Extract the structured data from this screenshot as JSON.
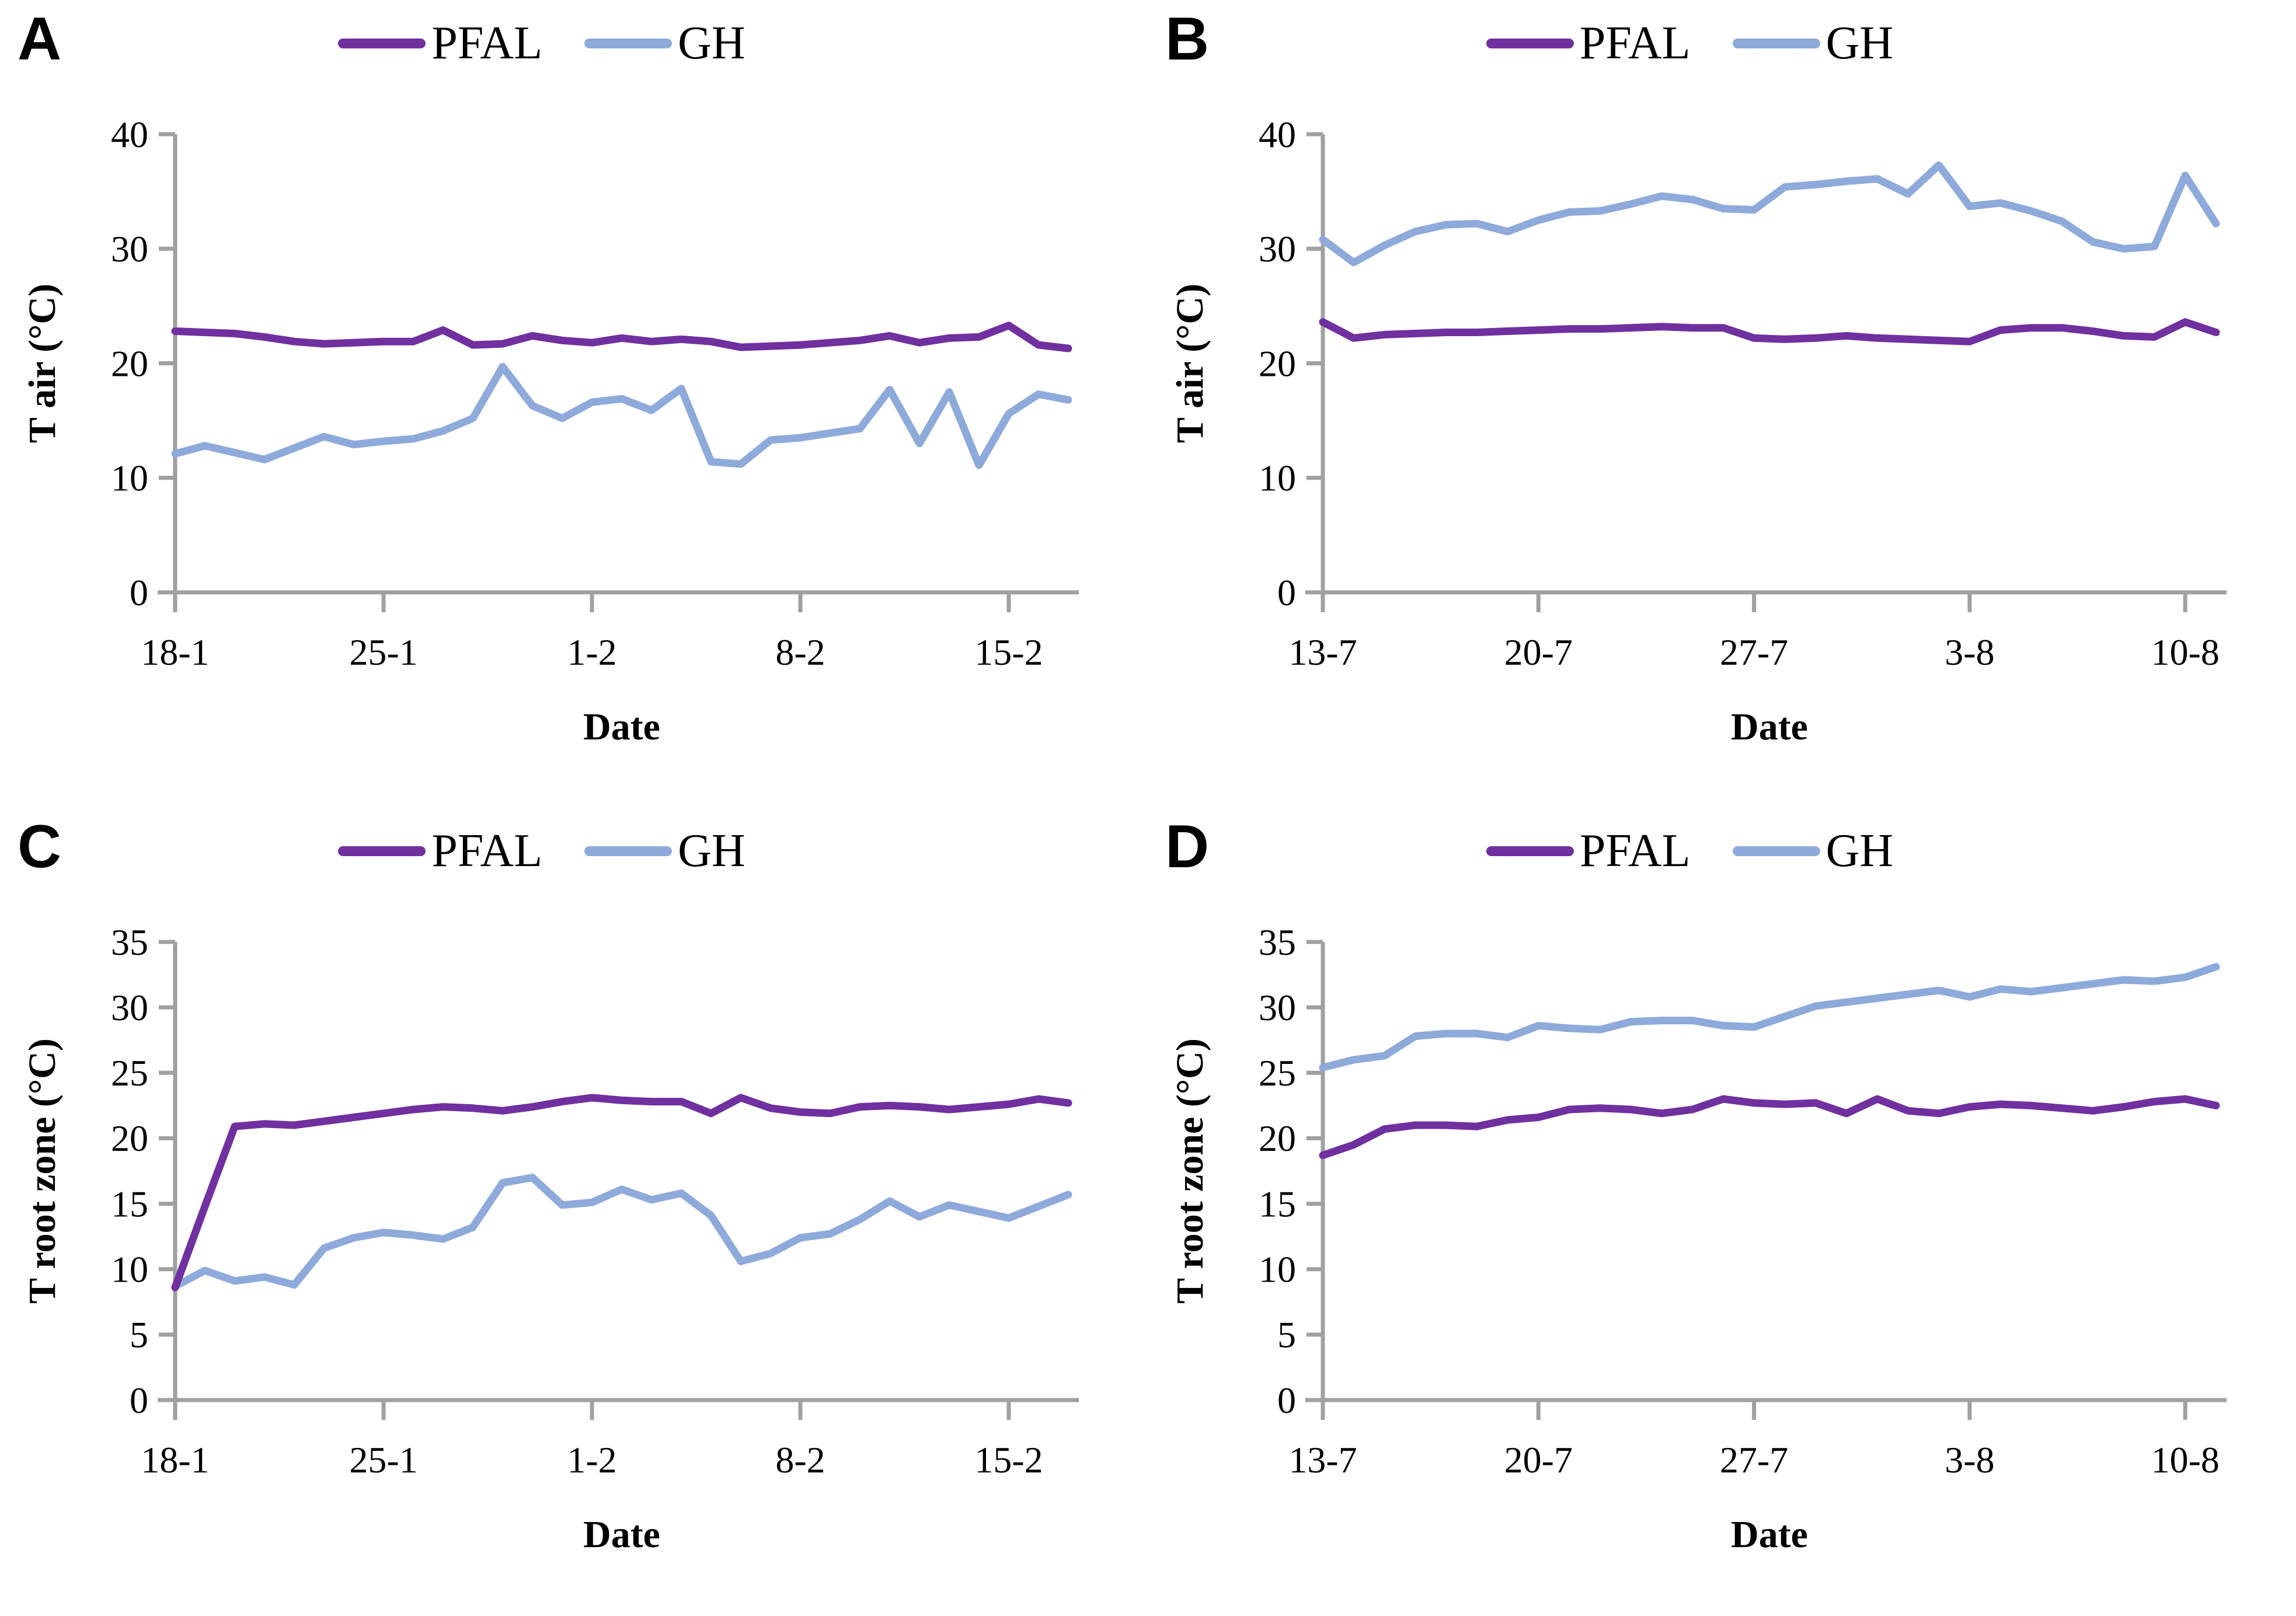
{
  "figure": {
    "background": "#ffffff",
    "text_color": "#000000",
    "axis_color": "#a0a0a0",
    "series_colors": {
      "PFAL": "#7030a0",
      "GH": "#8eaadb"
    },
    "legend_position": "top-center",
    "grid": false
  },
  "chart_data": [
    {
      "type": "line",
      "panel": "A",
      "title": "",
      "xlabel": "Date",
      "ylabel": "T air (°C)",
      "ylim": [
        0,
        40
      ],
      "yticks": [
        0,
        10,
        20,
        30,
        40
      ],
      "x_tick_labels": [
        "18-1",
        "25-1",
        "1-2",
        "8-2",
        "15-2"
      ],
      "x_tick_indices": [
        0,
        7,
        14,
        21,
        28
      ],
      "legend": [
        "PFAL",
        "GH"
      ],
      "categories": [
        "18-1",
        "19-1",
        "20-1",
        "21-1",
        "22-1",
        "23-1",
        "24-1",
        "25-1",
        "26-1",
        "27-1",
        "28-1",
        "29-1",
        "30-1",
        "31-1",
        "1-2",
        "2-2",
        "3-2",
        "4-2",
        "5-2",
        "6-2",
        "7-2",
        "8-2",
        "9-2",
        "10-2",
        "11-2",
        "12-2",
        "13-2",
        "14-2",
        "15-2",
        "16-2",
        "17-2"
      ],
      "series": [
        {
          "name": "PFAL",
          "color": "#7030a0",
          "values": [
            22.8,
            22.7,
            22.6,
            22.3,
            21.9,
            21.7,
            21.8,
            21.9,
            21.9,
            22.9,
            21.6,
            21.7,
            22.4,
            22.0,
            21.8,
            22.2,
            21.9,
            22.1,
            21.9,
            21.4,
            21.5,
            21.6,
            21.8,
            22.0,
            22.4,
            21.8,
            22.2,
            22.3,
            23.3,
            21.6,
            21.3
          ]
        },
        {
          "name": "GH",
          "color": "#8eaadb",
          "values": [
            12.1,
            12.8,
            12.2,
            11.6,
            12.6,
            13.6,
            12.9,
            13.2,
            13.4,
            14.1,
            15.2,
            19.7,
            16.3,
            15.2,
            16.6,
            16.9,
            15.9,
            17.8,
            11.4,
            11.2,
            13.3,
            13.5,
            13.9,
            14.3,
            17.7,
            13.0,
            17.5,
            11.1,
            15.6,
            17.3,
            16.8
          ]
        }
      ]
    },
    {
      "type": "line",
      "panel": "B",
      "title": "",
      "xlabel": "Date",
      "ylabel": "T air (°C)",
      "ylim": [
        0,
        40
      ],
      "yticks": [
        0,
        10,
        20,
        30,
        40
      ],
      "x_tick_labels": [
        "13-7",
        "20-7",
        "27-7",
        "3-8",
        "10-8"
      ],
      "x_tick_indices": [
        0,
        7,
        14,
        21,
        28
      ],
      "legend": [
        "PFAL",
        "GH"
      ],
      "categories": [
        "13-7",
        "14-7",
        "15-7",
        "16-7",
        "17-7",
        "18-7",
        "19-7",
        "20-7",
        "21-7",
        "22-7",
        "23-7",
        "24-7",
        "25-7",
        "26-7",
        "27-7",
        "28-7",
        "29-7",
        "30-7",
        "31-7",
        "1-8",
        "2-8",
        "3-8",
        "4-8",
        "5-8",
        "6-8",
        "7-8",
        "8-8",
        "9-8",
        "10-8",
        "11-8"
      ],
      "series": [
        {
          "name": "PFAL",
          "color": "#7030a0",
          "values": [
            23.6,
            22.2,
            22.5,
            22.6,
            22.7,
            22.7,
            22.8,
            22.9,
            23.0,
            23.0,
            23.1,
            23.2,
            23.1,
            23.1,
            22.2,
            22.1,
            22.2,
            22.4,
            22.2,
            22.1,
            22.0,
            21.9,
            22.9,
            23.1,
            23.1,
            22.8,
            22.4,
            22.3,
            23.6,
            22.7
          ]
        },
        {
          "name": "GH",
          "color": "#8eaadb",
          "values": [
            30.8,
            28.8,
            30.3,
            31.5,
            32.1,
            32.2,
            31.5,
            32.5,
            33.2,
            33.3,
            33.9,
            34.6,
            34.3,
            33.5,
            33.4,
            35.4,
            35.6,
            35.9,
            36.1,
            34.8,
            37.3,
            33.7,
            34.0,
            33.3,
            32.4,
            30.6,
            30.0,
            30.2,
            36.4,
            32.2
          ]
        }
      ]
    },
    {
      "type": "line",
      "panel": "C",
      "title": "",
      "xlabel": "Date",
      "ylabel": "T root zone (°C)",
      "ylim": [
        0,
        35
      ],
      "yticks": [
        0,
        5,
        10,
        15,
        20,
        25,
        30,
        35
      ],
      "x_tick_labels": [
        "18-1",
        "25-1",
        "1-2",
        "8-2",
        "15-2"
      ],
      "x_tick_indices": [
        0,
        7,
        14,
        21,
        28
      ],
      "legend": [
        "PFAL",
        "GH"
      ],
      "categories": [
        "18-1",
        "19-1",
        "20-1",
        "21-1",
        "22-1",
        "23-1",
        "24-1",
        "25-1",
        "26-1",
        "27-1",
        "28-1",
        "29-1",
        "30-1",
        "31-1",
        "1-2",
        "2-2",
        "3-2",
        "4-2",
        "5-2",
        "6-2",
        "7-2",
        "8-2",
        "9-2",
        "10-2",
        "11-2",
        "12-2",
        "13-2",
        "14-2",
        "15-2",
        "16-2",
        "17-2"
      ],
      "series": [
        {
          "name": "PFAL",
          "color": "#7030a0",
          "values": [
            8.6,
            14.8,
            20.9,
            21.1,
            21.0,
            21.3,
            21.6,
            21.9,
            22.2,
            22.4,
            22.3,
            22.1,
            22.4,
            22.8,
            23.1,
            22.9,
            22.8,
            22.8,
            21.9,
            23.1,
            22.3,
            22.0,
            21.9,
            22.4,
            22.5,
            22.4,
            22.2,
            22.4,
            22.6,
            23.0,
            22.7
          ]
        },
        {
          "name": "GH",
          "color": "#8eaadb",
          "values": [
            8.7,
            9.9,
            9.1,
            9.4,
            8.8,
            11.6,
            12.4,
            12.8,
            12.6,
            12.3,
            13.2,
            16.6,
            17.0,
            14.9,
            15.1,
            16.1,
            15.3,
            15.8,
            14.1,
            10.6,
            11.2,
            12.4,
            12.7,
            13.8,
            15.2,
            14.0,
            14.9,
            14.4,
            13.9,
            14.8,
            15.7
          ]
        }
      ]
    },
    {
      "type": "line",
      "panel": "D",
      "title": "",
      "xlabel": "Date",
      "ylabel": "T root zone (°C)",
      "ylim": [
        0,
        35
      ],
      "yticks": [
        0,
        5,
        10,
        15,
        20,
        25,
        30,
        35
      ],
      "x_tick_labels": [
        "13-7",
        "20-7",
        "27-7",
        "3-8",
        "10-8"
      ],
      "x_tick_indices": [
        0,
        7,
        14,
        21,
        28
      ],
      "legend": [
        "PFAL",
        "GH"
      ],
      "categories": [
        "13-7",
        "14-7",
        "15-7",
        "16-7",
        "17-7",
        "18-7",
        "19-7",
        "20-7",
        "21-7",
        "22-7",
        "23-7",
        "24-7",
        "25-7",
        "26-7",
        "27-7",
        "28-7",
        "29-7",
        "30-7",
        "31-7",
        "1-8",
        "2-8",
        "3-8",
        "4-8",
        "5-8",
        "6-8",
        "7-8",
        "8-8",
        "9-8",
        "10-8",
        "11-8"
      ],
      "series": [
        {
          "name": "PFAL",
          "color": "#7030a0",
          "values": [
            18.7,
            19.5,
            20.7,
            21.0,
            21.0,
            20.9,
            21.4,
            21.6,
            22.2,
            22.3,
            22.2,
            21.9,
            22.2,
            23.0,
            22.7,
            22.6,
            22.7,
            21.9,
            23.0,
            22.1,
            21.9,
            22.4,
            22.6,
            22.5,
            22.3,
            22.1,
            22.4,
            22.8,
            23.0,
            22.5
          ]
        },
        {
          "name": "GH",
          "color": "#8eaadb",
          "values": [
            25.4,
            26.0,
            26.3,
            27.8,
            28.0,
            28.0,
            27.7,
            28.6,
            28.4,
            28.3,
            28.9,
            29.0,
            29.0,
            28.6,
            28.5,
            29.3,
            30.1,
            30.4,
            30.7,
            31.0,
            31.3,
            30.8,
            31.4,
            31.2,
            31.5,
            31.8,
            32.1,
            32.0,
            32.3,
            33.1
          ]
        }
      ]
    }
  ]
}
